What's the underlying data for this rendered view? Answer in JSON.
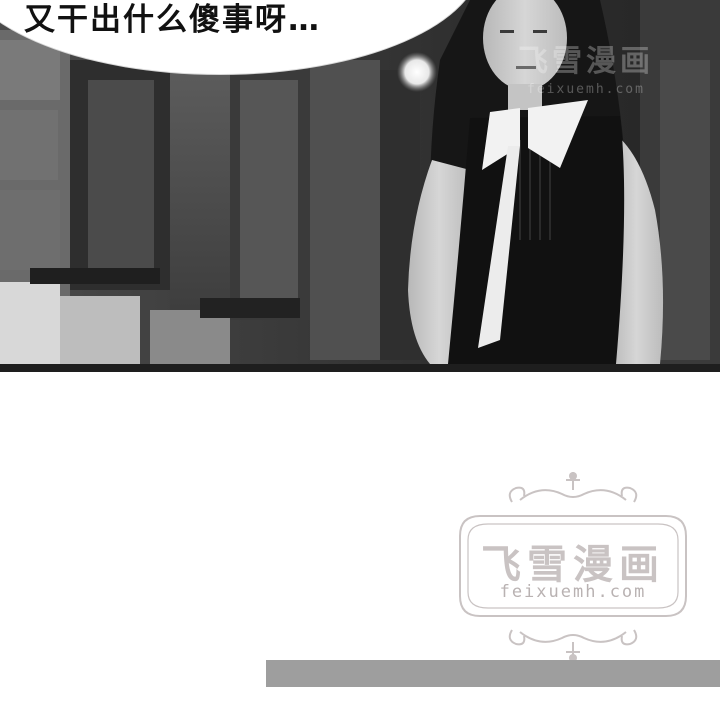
{
  "speech_bubble": {
    "text": "又干出什么傻事呀…"
  },
  "watermark": {
    "title": "飞雪漫画",
    "url": "feixuemh.com"
  },
  "photo": {
    "icon": "photo-scene-girl-street"
  }
}
